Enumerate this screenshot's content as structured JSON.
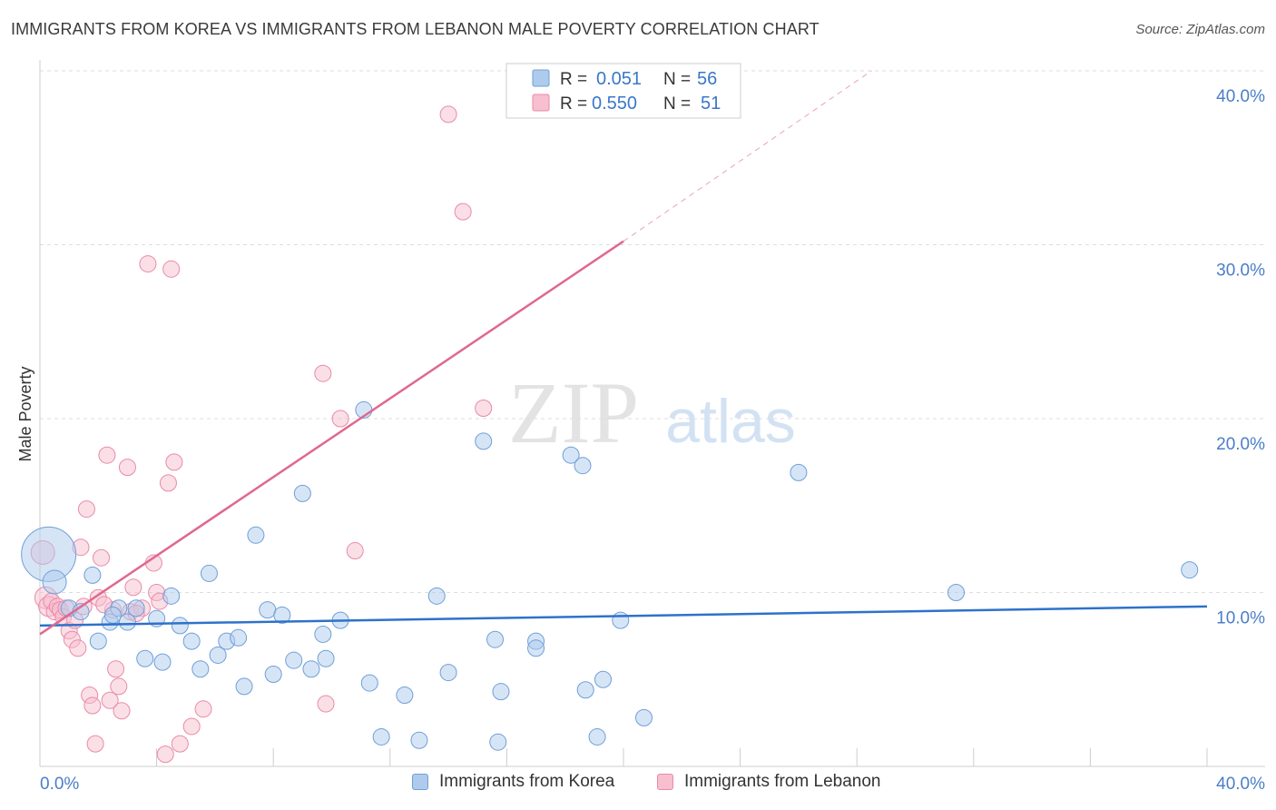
{
  "header": {
    "title": "IMMIGRANTS FROM KOREA VS IMMIGRANTS FROM LEBANON MALE POVERTY CORRELATION CHART",
    "source": "Source: ZipAtlas.com"
  },
  "watermark": {
    "zip": "ZIP",
    "atlas": "atlas"
  },
  "legend_top": {
    "korea": {
      "r_label": "R =",
      "r_value": "0.051",
      "n_label": "N =",
      "n_value": "56"
    },
    "lebanon": {
      "r_label": "R =",
      "r_value": "0.550",
      "n_label": "N =",
      "n_value": "51"
    }
  },
  "colors": {
    "korea_fill": "#aecbee",
    "korea_stroke": "#6f9fd8",
    "korea_line": "#2e72c9",
    "lebanon_fill": "#f7bfd0",
    "lebanon_stroke": "#e98aa8",
    "lebanon_line": "#e0688f",
    "axis_text": "#4a7ec8",
    "grid": "#dddddd"
  },
  "chart_data": {
    "type": "scatter",
    "title": "IMMIGRANTS FROM KOREA VS IMMIGRANTS FROM LEBANON MALE POVERTY CORRELATION CHART",
    "xlabel": "",
    "ylabel": "Male Poverty",
    "xlim": [
      0,
      40
    ],
    "ylim": [
      0,
      40
    ],
    "x_tick_labels": {
      "left": "0.0%",
      "right": "40.0%"
    },
    "y_ticks": [
      {
        "value": 10,
        "label": "10.0%"
      },
      {
        "value": 20,
        "label": "20.0%"
      },
      {
        "value": 30,
        "label": "30.0%"
      },
      {
        "value": 40,
        "label": "40.0%"
      }
    ],
    "series": [
      {
        "name": "Immigrants from Korea",
        "key": "korea",
        "r": 0.051,
        "n": 56,
        "trend": {
          "x0": 0,
          "y0": 8.1,
          "x1": 40,
          "y1": 9.2
        },
        "points": [
          [
            0.3,
            12.2,
            30
          ],
          [
            0.5,
            10.6,
            13
          ],
          [
            1.0,
            9.1,
            9
          ],
          [
            1.4,
            8.9,
            9
          ],
          [
            1.8,
            11.0,
            9
          ],
          [
            2.0,
            7.2,
            9
          ],
          [
            2.4,
            8.3,
            9
          ],
          [
            2.7,
            9.1,
            9
          ],
          [
            3.0,
            8.3,
            9
          ],
          [
            3.3,
            9.1,
            9
          ],
          [
            3.6,
            6.2,
            9
          ],
          [
            4.0,
            8.5,
            9
          ],
          [
            4.2,
            6.0,
            9
          ],
          [
            4.5,
            9.8,
            9
          ],
          [
            4.8,
            8.1,
            9
          ],
          [
            5.2,
            7.2,
            9
          ],
          [
            5.5,
            5.6,
            9
          ],
          [
            5.8,
            11.1,
            9
          ],
          [
            6.1,
            6.4,
            9
          ],
          [
            6.4,
            7.2,
            9
          ],
          [
            6.8,
            7.4,
            9
          ],
          [
            7.0,
            4.6,
            9
          ],
          [
            7.4,
            13.3,
            9
          ],
          [
            7.8,
            9.0,
            9
          ],
          [
            8.0,
            5.3,
            9
          ],
          [
            8.3,
            8.7,
            9
          ],
          [
            8.7,
            6.1,
            9
          ],
          [
            9.0,
            15.7,
            9
          ],
          [
            9.3,
            5.6,
            9
          ],
          [
            9.7,
            7.6,
            9
          ],
          [
            9.8,
            6.2,
            9
          ],
          [
            10.3,
            8.4,
            9
          ],
          [
            11.1,
            20.5,
            9
          ],
          [
            11.3,
            4.8,
            9
          ],
          [
            11.7,
            1.7,
            9
          ],
          [
            12.5,
            4.1,
            9
          ],
          [
            13.0,
            1.5,
            9
          ],
          [
            13.6,
            9.8,
            9
          ],
          [
            14.0,
            5.4,
            9
          ],
          [
            15.2,
            18.7,
            9
          ],
          [
            15.6,
            7.3,
            9
          ],
          [
            15.8,
            4.3,
            9
          ],
          [
            15.7,
            1.4,
            9
          ],
          [
            17.0,
            7.2,
            9
          ],
          [
            17.0,
            6.8,
            9
          ],
          [
            18.2,
            17.9,
            9
          ],
          [
            18.6,
            17.3,
            9
          ],
          [
            18.7,
            4.4,
            9
          ],
          [
            19.1,
            1.7,
            9
          ],
          [
            19.3,
            5.0,
            9
          ],
          [
            19.9,
            8.4,
            9
          ],
          [
            20.7,
            2.8,
            9
          ],
          [
            26.0,
            16.9,
            9
          ],
          [
            31.4,
            10.0,
            9
          ],
          [
            39.4,
            11.3,
            9
          ],
          [
            2.5,
            8.7,
            9
          ]
        ]
      },
      {
        "name": "Immigrants from Lebanon",
        "key": "lebanon",
        "r": 0.55,
        "n": 51,
        "trend": {
          "x0": 0,
          "y0": 7.6,
          "x1": 20,
          "y1": 30.2,
          "dash_x1": 28.5,
          "dash_y1": 40.0
        },
        "points": [
          [
            0.1,
            12.3,
            13
          ],
          [
            0.2,
            9.7,
            12
          ],
          [
            0.3,
            9.2,
            11
          ],
          [
            0.4,
            9.5,
            9
          ],
          [
            0.5,
            8.9,
            9
          ],
          [
            0.6,
            9.2,
            9
          ],
          [
            0.7,
            9.0,
            9
          ],
          [
            0.8,
            8.6,
            9
          ],
          [
            0.9,
            9.1,
            9
          ],
          [
            1.0,
            7.8,
            9
          ],
          [
            1.1,
            7.3,
            9
          ],
          [
            1.2,
            8.4,
            9
          ],
          [
            1.3,
            6.8,
            9
          ],
          [
            1.4,
            12.6,
            9
          ],
          [
            1.5,
            9.2,
            9
          ],
          [
            1.6,
            14.8,
            9
          ],
          [
            1.7,
            4.1,
            9
          ],
          [
            1.8,
            3.5,
            9
          ],
          [
            1.9,
            1.3,
            9
          ],
          [
            2.0,
            9.7,
            9
          ],
          [
            2.1,
            12.0,
            9
          ],
          [
            2.3,
            17.9,
            9
          ],
          [
            2.4,
            3.8,
            9
          ],
          [
            2.5,
            9.0,
            9
          ],
          [
            2.6,
            5.6,
            9
          ],
          [
            2.7,
            4.6,
            9
          ],
          [
            2.8,
            3.2,
            9
          ],
          [
            3.0,
            17.2,
            9
          ],
          [
            3.1,
            8.9,
            9
          ],
          [
            3.2,
            10.3,
            9
          ],
          [
            3.5,
            9.1,
            9
          ],
          [
            3.7,
            28.9,
            9
          ],
          [
            3.9,
            11.7,
            9
          ],
          [
            4.0,
            10.0,
            9
          ],
          [
            4.1,
            9.5,
            9
          ],
          [
            4.3,
            0.7,
            9
          ],
          [
            4.4,
            16.3,
            9
          ],
          [
            4.5,
            28.6,
            9
          ],
          [
            4.6,
            17.5,
            9
          ],
          [
            4.8,
            1.3,
            9
          ],
          [
            5.2,
            2.3,
            9
          ],
          [
            5.6,
            3.3,
            9
          ],
          [
            9.7,
            22.6,
            9
          ],
          [
            9.8,
            3.6,
            9
          ],
          [
            10.3,
            20.0,
            9
          ],
          [
            10.8,
            12.4,
            9
          ],
          [
            14.0,
            37.5,
            9
          ],
          [
            14.5,
            31.9,
            9
          ],
          [
            15.2,
            20.6,
            9
          ],
          [
            2.2,
            9.3,
            9
          ],
          [
            3.3,
            8.8,
            9
          ]
        ]
      }
    ]
  },
  "legend_bottom": {
    "korea_label": "Immigrants from Korea",
    "lebanon_label": "Immigrants from Lebanon"
  }
}
